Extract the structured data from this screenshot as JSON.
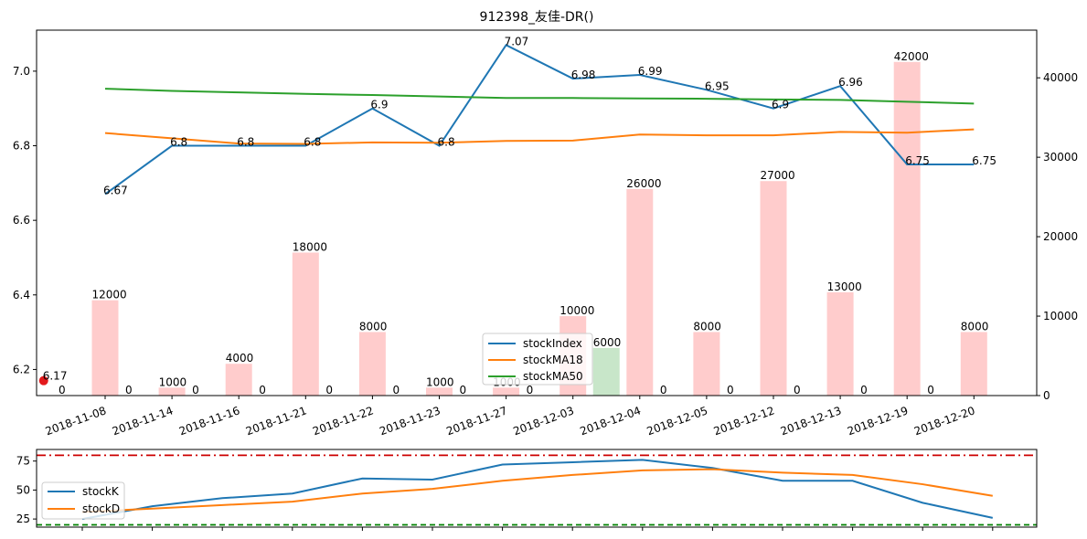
{
  "chart_data": [
    {
      "type": "line",
      "title": "912398_友佳-DR()",
      "categories": [
        "2018-11-08",
        "2018-11-14",
        "2018-11-16",
        "2018-11-21",
        "2018-11-22",
        "2018-11-23",
        "2018-11-27",
        "2018-12-03",
        "2018-12-04",
        "2018-12-05",
        "2018-12-12",
        "2018-12-13",
        "2018-12-19",
        "2018-12-20"
      ],
      "xlabel": "",
      "ylabel": "",
      "ylim": [
        6.13,
        7.11
      ],
      "yticks": [
        6.2,
        6.4,
        6.6,
        6.8,
        7.0
      ],
      "y2lim": [
        0,
        46000
      ],
      "y2ticks": [
        0,
        10000,
        20000,
        30000,
        40000
      ],
      "series": [
        {
          "name": "stockIndex",
          "color": "#1f77b4",
          "x": [
            0,
            1,
            2,
            3,
            4,
            5,
            6,
            7,
            8,
            9,
            10,
            11,
            12,
            13
          ],
          "values": [
            6.67,
            6.8,
            6.8,
            6.8,
            6.9,
            6.8,
            7.07,
            6.98,
            6.99,
            6.95,
            6.9,
            6.96,
            6.75,
            6.75
          ],
          "labels": [
            "6.67",
            "6.8",
            "6.8",
            "6.8",
            "6.9",
            "6.8",
            "7.07",
            "6.98",
            "6.99",
            "6.95",
            "6.9",
            "6.96",
            "6.75",
            "6.75"
          ]
        },
        {
          "name": "stockMA18",
          "color": "#ff7f0e",
          "x": [
            0,
            1,
            2,
            3,
            4,
            5,
            6,
            7,
            8,
            9,
            10,
            11,
            12,
            13
          ],
          "values": [
            6.834,
            6.82,
            6.806,
            6.805,
            6.809,
            6.808,
            6.813,
            6.814,
            6.83,
            6.828,
            6.828,
            6.837,
            6.835,
            6.844
          ]
        },
        {
          "name": "stockMA50",
          "color": "#2ca02c",
          "x": [
            0,
            1,
            2,
            3,
            4,
            5,
            6,
            7,
            8,
            9,
            10,
            11,
            12,
            13
          ],
          "values": [
            6.953,
            6.947,
            6.943,
            6.939,
            6.936,
            6.932,
            6.928,
            6.928,
            6.927,
            6.926,
            6.924,
            6.923,
            6.918,
            6.913
          ]
        }
      ],
      "bars": {
        "color_up": "#ffcccc",
        "color_down": "#c8e6c9",
        "items": [
          {
            "x": 0,
            "value": 12000,
            "label": "12000",
            "color": "up"
          },
          {
            "x": 0.5,
            "value": 0,
            "label": "0",
            "color": "up"
          },
          {
            "x": 1,
            "value": 1000,
            "label": "1000",
            "color": "up"
          },
          {
            "x": 1.5,
            "value": 0,
            "label": "0",
            "color": "up"
          },
          {
            "x": 2,
            "value": 4000,
            "label": "4000",
            "color": "up"
          },
          {
            "x": 2.5,
            "value": 0,
            "label": "0",
            "color": "up"
          },
          {
            "x": 3,
            "value": 18000,
            "label": "18000",
            "color": "up"
          },
          {
            "x": 3.5,
            "value": 0,
            "label": "0",
            "color": "up"
          },
          {
            "x": 4,
            "value": 8000,
            "label": "8000",
            "color": "up"
          },
          {
            "x": 4.5,
            "value": 0,
            "label": "0",
            "color": "up"
          },
          {
            "x": 5,
            "value": 1000,
            "label": "1000",
            "color": "up"
          },
          {
            "x": 5.5,
            "value": 0,
            "label": "0",
            "color": "up"
          },
          {
            "x": 6,
            "value": 1000,
            "label": "1000",
            "color": "up"
          },
          {
            "x": 6.5,
            "value": 0,
            "label": "0",
            "color": "up"
          },
          {
            "x": 7,
            "value": 10000,
            "label": "10000",
            "color": "up"
          },
          {
            "x": 7.5,
            "value": 6000,
            "label": "6000",
            "color": "down"
          },
          {
            "x": 8,
            "value": 26000,
            "label": "26000",
            "color": "up"
          },
          {
            "x": 8.5,
            "value": 0,
            "label": "0",
            "color": "up"
          },
          {
            "x": 9,
            "value": 8000,
            "label": "8000",
            "color": "up"
          },
          {
            "x": 9.5,
            "value": 0,
            "label": "0",
            "color": "up"
          },
          {
            "x": 10,
            "value": 27000,
            "label": "27000",
            "color": "up"
          },
          {
            "x": 10.5,
            "value": 0,
            "label": "0",
            "color": "up"
          },
          {
            "x": 11,
            "value": 13000,
            "label": "13000",
            "color": "up"
          },
          {
            "x": 11.5,
            "value": 0,
            "label": "0",
            "color": "up"
          },
          {
            "x": 12,
            "value": 42000,
            "label": "42000",
            "color": "up"
          },
          {
            "x": 12.5,
            "value": 0,
            "label": "0",
            "color": "up"
          },
          {
            "x": 13,
            "value": 8000,
            "label": "8000",
            "color": "up"
          }
        ],
        "leading_zero": {
          "x": -0.5,
          "label": "0"
        }
      },
      "marker": {
        "x": -0.92,
        "value": 6.17,
        "label": "6.17",
        "color": "#e31a1c"
      },
      "legend": {
        "placement": "lower-center",
        "entries": [
          "stockIndex",
          "stockMA18",
          "stockMA50"
        ]
      },
      "grid": false
    },
    {
      "type": "line",
      "title": "",
      "xlim": [
        -0.5,
        13.5
      ],
      "ylim": [
        18,
        85
      ],
      "yticks": [
        25,
        50,
        75
      ],
      "series": [
        {
          "name": "stockK",
          "color": "#1f77b4",
          "x": [
            0,
            1,
            2,
            3,
            4,
            5,
            6,
            7,
            8,
            9,
            10,
            11,
            12,
            13
          ],
          "values": [
            25,
            36,
            43,
            47,
            60,
            59,
            72,
            74,
            76,
            69,
            58,
            58,
            39,
            26
          ]
        },
        {
          "name": "stockD",
          "color": "#ff7f0e",
          "x": [
            0,
            1,
            2,
            3,
            4,
            5,
            6,
            7,
            8,
            9,
            10,
            11,
            12,
            13
          ],
          "values": [
            31,
            34,
            37,
            40,
            47,
            51,
            58,
            63,
            67,
            68,
            65,
            63,
            55,
            45
          ]
        }
      ],
      "hlines": [
        {
          "value": 80,
          "color": "#cc0000",
          "style": "dashdot"
        },
        {
          "value": 20,
          "color": "#008000",
          "style": "dashed"
        }
      ],
      "legend": {
        "placement": "lower-left",
        "entries": [
          "stockK",
          "stockD"
        ]
      },
      "grid": false
    }
  ]
}
